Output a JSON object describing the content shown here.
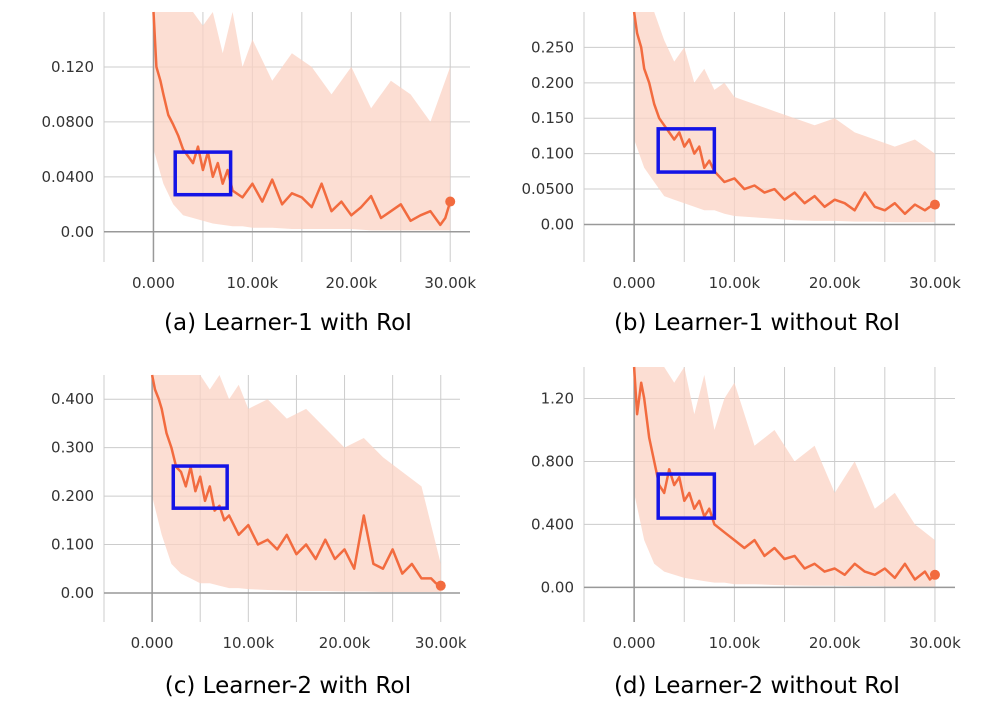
{
  "style": {
    "smoothed_color": "#f26b3f",
    "raw_color": "#fbd3c4",
    "roi_box_color": "#1414e6",
    "grid_color": "#cccccc",
    "axis_color": "#999999"
  },
  "chart_data": [
    {
      "type": "line",
      "caption": "(a) Learner-1 with RoI",
      "xlim": [
        -5000,
        32000
      ],
      "ylim": [
        -0.022,
        0.16
      ],
      "xticks": [
        0,
        10000,
        20000,
        30000
      ],
      "xtick_labels": [
        "0.000",
        "10.00k",
        "20.00k",
        "30.00k"
      ],
      "yticks": [
        0,
        0.04,
        0.08,
        0.12
      ],
      "ytick_labels": [
        "0.00",
        "0.0400",
        "0.0800",
        "0.120"
      ],
      "grid": true,
      "series": [
        {
          "role": "smoothed",
          "x": [
            0,
            300,
            700,
            1000,
            1500,
            2000,
            2500,
            3000,
            3500,
            4000,
            4500,
            5000,
            5500,
            6000,
            6500,
            7000,
            7500,
            8000,
            9000,
            10000,
            11000,
            12000,
            13000,
            14000,
            15000,
            16000,
            17000,
            18000,
            19000,
            20000,
            21000,
            22000,
            23000,
            24000,
            25000,
            26000,
            27000,
            28000,
            29000,
            29500,
            30000
          ],
          "y": [
            0.16,
            0.12,
            0.11,
            0.1,
            0.085,
            0.078,
            0.07,
            0.06,
            0.055,
            0.05,
            0.062,
            0.045,
            0.058,
            0.04,
            0.05,
            0.035,
            0.045,
            0.03,
            0.025,
            0.035,
            0.022,
            0.038,
            0.02,
            0.028,
            0.025,
            0.018,
            0.035,
            0.015,
            0.022,
            0.012,
            0.018,
            0.026,
            0.01,
            0.015,
            0.02,
            0.008,
            0.012,
            0.015,
            0.005,
            0.01,
            0.022
          ]
        },
        {
          "role": "raw",
          "x": [
            0,
            1000,
            2000,
            3000,
            4000,
            5000,
            6000,
            7000,
            8000,
            9000,
            10000,
            12000,
            14000,
            16000,
            18000,
            20000,
            22000,
            24000,
            26000,
            28000,
            30000
          ],
          "ymax": [
            0.16,
            0.16,
            0.16,
            0.16,
            0.16,
            0.15,
            0.16,
            0.13,
            0.16,
            0.12,
            0.14,
            0.11,
            0.13,
            0.12,
            0.1,
            0.12,
            0.09,
            0.11,
            0.1,
            0.08,
            0.12
          ],
          "ymin": [
            0.06,
            0.035,
            0.02,
            0.012,
            0.01,
            0.008,
            0.006,
            0.005,
            0.004,
            0.004,
            0.003,
            0.003,
            0.002,
            0.002,
            0.002,
            0.002,
            0.001,
            0.001,
            0.001,
            0.001,
            0.001
          ]
        }
      ],
      "roi_box": {
        "x": [
          2200,
          7800
        ],
        "y": [
          0.027,
          0.058
        ]
      }
    },
    {
      "type": "line",
      "caption": "(b) Learner-1 without RoI",
      "xlim": [
        -5000,
        32000
      ],
      "ylim": [
        -0.053,
        0.3
      ],
      "xticks": [
        0,
        10000,
        20000,
        30000
      ],
      "xtick_labels": [
        "0.000",
        "10.00k",
        "20.00k",
        "30.00k"
      ],
      "yticks": [
        0,
        0.05,
        0.1,
        0.15,
        0.2,
        0.25
      ],
      "ytick_labels": [
        "0.00",
        "0.0500",
        "0.100",
        "0.150",
        "0.200",
        "0.250"
      ],
      "grid": true,
      "series": [
        {
          "role": "smoothed",
          "x": [
            0,
            300,
            700,
            1000,
            1500,
            2000,
            2500,
            3000,
            3500,
            4000,
            4500,
            5000,
            5500,
            6000,
            6500,
            7000,
            7500,
            8000,
            9000,
            10000,
            11000,
            12000,
            13000,
            14000,
            15000,
            16000,
            17000,
            18000,
            19000,
            20000,
            21000,
            22000,
            23000,
            24000,
            25000,
            26000,
            27000,
            28000,
            29000,
            29500,
            30000
          ],
          "y": [
            0.3,
            0.27,
            0.25,
            0.22,
            0.2,
            0.17,
            0.15,
            0.14,
            0.13,
            0.12,
            0.13,
            0.11,
            0.12,
            0.1,
            0.11,
            0.08,
            0.09,
            0.075,
            0.06,
            0.065,
            0.05,
            0.055,
            0.045,
            0.05,
            0.035,
            0.045,
            0.03,
            0.04,
            0.025,
            0.035,
            0.03,
            0.02,
            0.045,
            0.025,
            0.02,
            0.03,
            0.015,
            0.028,
            0.02,
            0.025,
            0.028
          ]
        },
        {
          "role": "raw",
          "x": [
            0,
            1000,
            2000,
            3000,
            4000,
            5000,
            6000,
            7000,
            8000,
            9000,
            10000,
            12000,
            14000,
            16000,
            18000,
            20000,
            22000,
            24000,
            26000,
            28000,
            30000
          ],
          "ymax": [
            0.3,
            0.3,
            0.3,
            0.26,
            0.23,
            0.25,
            0.2,
            0.22,
            0.19,
            0.2,
            0.18,
            0.17,
            0.16,
            0.15,
            0.14,
            0.15,
            0.13,
            0.12,
            0.11,
            0.12,
            0.1
          ],
          "ymin": [
            0.12,
            0.08,
            0.06,
            0.04,
            0.035,
            0.03,
            0.025,
            0.02,
            0.02,
            0.015,
            0.012,
            0.01,
            0.008,
            0.006,
            0.005,
            0.005,
            0.004,
            0.004,
            0.003,
            0.003,
            0.003
          ]
        }
      ],
      "roi_box": {
        "x": [
          2400,
          8000
        ],
        "y": [
          0.074,
          0.135
        ]
      }
    },
    {
      "type": "line",
      "caption": "(c) Learner-2 with RoI",
      "xlim": [
        -5000,
        32000
      ],
      "ylim": [
        -0.06,
        0.45
      ],
      "xticks": [
        0,
        10000,
        20000,
        30000
      ],
      "xtick_labels": [
        "0.000",
        "10.00k",
        "20.00k",
        "30.00k"
      ],
      "yticks": [
        0,
        0.1,
        0.2,
        0.3,
        0.4
      ],
      "ytick_labels": [
        "0.00",
        "0.100",
        "0.200",
        "0.300",
        "0.400"
      ],
      "grid": true,
      "series": [
        {
          "role": "smoothed",
          "x": [
            0,
            300,
            700,
            1000,
            1500,
            2000,
            2500,
            3000,
            3500,
            4000,
            4500,
            5000,
            5500,
            6000,
            6500,
            7000,
            7500,
            8000,
            9000,
            10000,
            11000,
            12000,
            13000,
            14000,
            15000,
            16000,
            17000,
            18000,
            19000,
            20000,
            21000,
            22000,
            23000,
            24000,
            25000,
            26000,
            27000,
            28000,
            29000,
            29500,
            30000
          ],
          "y": [
            0.45,
            0.42,
            0.4,
            0.38,
            0.33,
            0.3,
            0.26,
            0.25,
            0.22,
            0.26,
            0.21,
            0.24,
            0.19,
            0.22,
            0.17,
            0.18,
            0.15,
            0.16,
            0.12,
            0.14,
            0.1,
            0.11,
            0.09,
            0.12,
            0.08,
            0.1,
            0.07,
            0.11,
            0.07,
            0.09,
            0.05,
            0.16,
            0.06,
            0.05,
            0.09,
            0.04,
            0.06,
            0.03,
            0.03,
            0.02,
            0.015
          ]
        },
        {
          "role": "raw",
          "x": [
            0,
            1000,
            2000,
            3000,
            4000,
            5000,
            6000,
            7000,
            8000,
            9000,
            10000,
            12000,
            14000,
            16000,
            18000,
            20000,
            22000,
            24000,
            26000,
            28000,
            30000
          ],
          "ymax": [
            0.45,
            0.45,
            0.45,
            0.45,
            0.45,
            0.45,
            0.42,
            0.45,
            0.4,
            0.43,
            0.38,
            0.4,
            0.36,
            0.38,
            0.34,
            0.3,
            0.32,
            0.28,
            0.25,
            0.22,
            0.06
          ],
          "ymin": [
            0.2,
            0.12,
            0.06,
            0.04,
            0.03,
            0.02,
            0.02,
            0.015,
            0.01,
            0.01,
            0.008,
            0.006,
            0.005,
            0.004,
            0.004,
            0.003,
            0.003,
            0.002,
            0.002,
            0.002,
            0.002
          ]
        }
      ],
      "roi_box": {
        "x": [
          2200,
          7800
        ],
        "y": [
          0.175,
          0.262
        ]
      }
    },
    {
      "type": "line",
      "caption": "(d) Learner-2 without RoI",
      "xlim": [
        -5000,
        32000
      ],
      "ylim": [
        -0.22,
        1.4
      ],
      "xticks": [
        0,
        10000,
        20000,
        30000
      ],
      "xtick_labels": [
        "0.000",
        "10.00k",
        "20.00k",
        "30.00k"
      ],
      "yticks": [
        0,
        0.4,
        0.8,
        1.2
      ],
      "ytick_labels": [
        "0.00",
        "0.400",
        "0.800",
        "1.20"
      ],
      "grid": true,
      "series": [
        {
          "role": "smoothed",
          "x": [
            0,
            300,
            700,
            1000,
            1500,
            2000,
            2500,
            3000,
            3500,
            4000,
            4500,
            5000,
            5500,
            6000,
            6500,
            7000,
            7500,
            8000,
            9000,
            10000,
            11000,
            12000,
            13000,
            14000,
            15000,
            16000,
            17000,
            18000,
            19000,
            20000,
            21000,
            22000,
            23000,
            24000,
            25000,
            26000,
            27000,
            28000,
            29000,
            29500,
            30000
          ],
          "y": [
            1.4,
            1.1,
            1.3,
            1.2,
            0.95,
            0.8,
            0.65,
            0.6,
            0.75,
            0.65,
            0.7,
            0.55,
            0.6,
            0.5,
            0.55,
            0.45,
            0.5,
            0.4,
            0.35,
            0.3,
            0.25,
            0.3,
            0.2,
            0.25,
            0.18,
            0.2,
            0.12,
            0.15,
            0.1,
            0.12,
            0.08,
            0.15,
            0.1,
            0.08,
            0.12,
            0.06,
            0.15,
            0.05,
            0.1,
            0.05,
            0.08
          ]
        },
        {
          "role": "raw",
          "x": [
            0,
            1000,
            2000,
            3000,
            4000,
            5000,
            6000,
            7000,
            8000,
            9000,
            10000,
            12000,
            14000,
            16000,
            18000,
            20000,
            22000,
            24000,
            26000,
            28000,
            30000
          ],
          "ymax": [
            1.4,
            1.4,
            1.4,
            1.4,
            1.3,
            1.4,
            1.1,
            1.35,
            1.0,
            1.2,
            1.3,
            0.9,
            1.0,
            0.8,
            0.9,
            0.6,
            0.8,
            0.5,
            0.6,
            0.4,
            0.3
          ],
          "ymin": [
            0.6,
            0.3,
            0.15,
            0.1,
            0.08,
            0.06,
            0.05,
            0.04,
            0.03,
            0.03,
            0.02,
            0.02,
            0.015,
            0.012,
            0.01,
            0.01,
            0.008,
            0.008,
            0.006,
            0.005,
            0.005
          ]
        }
      ],
      "roi_box": {
        "x": [
          2400,
          8000
        ],
        "y": [
          0.44,
          0.72
        ]
      }
    }
  ]
}
